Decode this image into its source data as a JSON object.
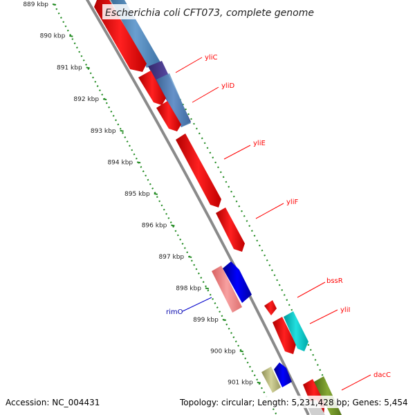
{
  "title": "Escherichia coli CFT073, complete genome",
  "footer": {
    "accession": "Accession: NC_004431",
    "stats": "Topology: circular; Length: 5,231,428 bp; Genes: 5,454"
  },
  "ticks": [
    {
      "label": "889 kbp",
      "y": 889
    },
    {
      "label": "890 kbp",
      "y": 890
    },
    {
      "label": "891 kbp",
      "y": 891
    },
    {
      "label": "892 kbp",
      "y": 892
    },
    {
      "label": "893 kbp",
      "y": 893
    },
    {
      "label": "894 kbp",
      "y": 894
    },
    {
      "label": "895 kbp",
      "y": 895
    },
    {
      "label": "896 kbp",
      "y": 896
    },
    {
      "label": "897 kbp",
      "y": 897
    },
    {
      "label": "898 kbp",
      "y": 898
    },
    {
      "label": "899 kbp",
      "y": 899
    },
    {
      "label": "900 kbp",
      "y": 900
    },
    {
      "label": "901 kbp",
      "y": 901
    }
  ],
  "gene_labels": [
    {
      "name": "yliC",
      "color": "#ff0000"
    },
    {
      "name": "yliD",
      "color": "#ff0000"
    },
    {
      "name": "yliE",
      "color": "#ff0000"
    },
    {
      "name": "yliF",
      "color": "#ff0000"
    },
    {
      "name": "bssR",
      "color": "#ff0000"
    },
    {
      "name": "yliI",
      "color": "#ff0000"
    },
    {
      "name": "rimO",
      "color": "#0000aa"
    },
    {
      "name": "dacC",
      "color": "#ff0000"
    }
  ],
  "colors": {
    "forward_cds": "#ff0000",
    "reverse_cds": "#0000ee",
    "steelblue_feature": "#4f86b8",
    "purple_feature": "#4a3d8f",
    "cyan_feature": "#00c8c8",
    "pink_feature": "#f08080",
    "olive_feature": "#6b8e23",
    "khaki_feature": "#b5b57a",
    "backbone": "#888888",
    "tick_dots": "#228b22"
  }
}
